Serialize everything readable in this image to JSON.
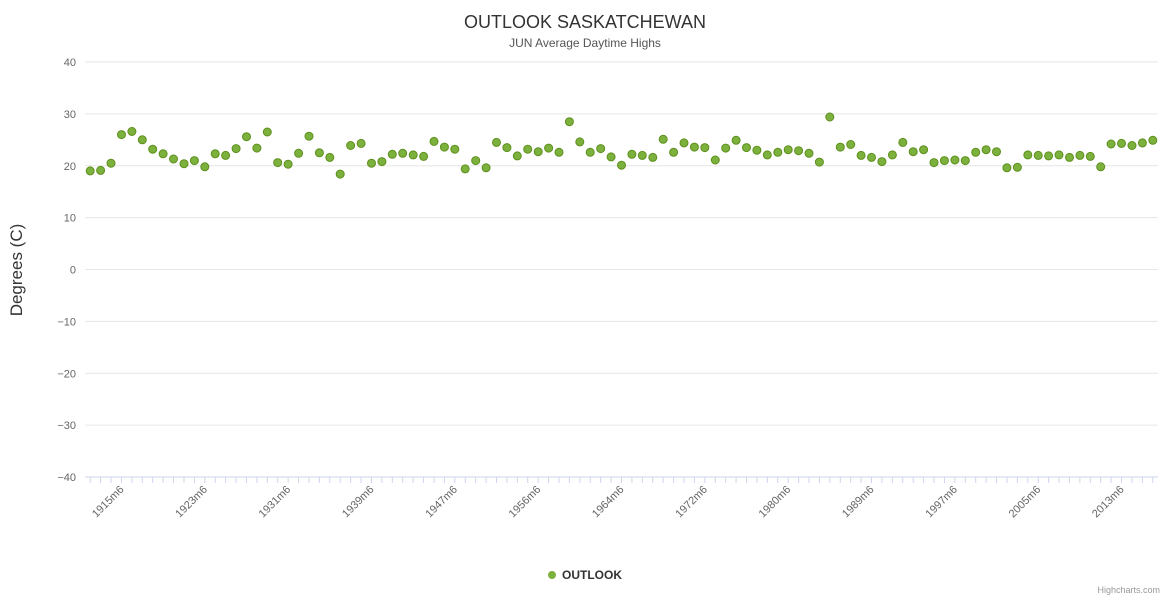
{
  "chart": {
    "credits": "Highcharts.com"
  },
  "chart_data": {
    "type": "scatter",
    "title": "OUTLOOK SASKATCHEWAN",
    "subtitle": "JUN Average Daytime Highs",
    "xlabel": "",
    "ylabel": "Degrees (C)",
    "ylim": [
      -40,
      40
    ],
    "y_tick_interval": 10,
    "y_tick_labels": [
      "40",
      "30",
      "20",
      "10",
      "0",
      "−10",
      "−20",
      "−30",
      "−40"
    ],
    "grid": true,
    "legend_position": "bottom-center",
    "x_tick_start": 3,
    "x_tick_interval": 8,
    "x_tick_labels": [
      "1915m6",
      "1923m6",
      "1931m6",
      "1939m6",
      "1947m6",
      "1956m6",
      "1964m6",
      "1972m6",
      "1980m6",
      "1989m6",
      "1997m6",
      "2005m6",
      "2013m6"
    ],
    "categories": [
      "1912m6",
      "1913m6",
      "1914m6",
      "1915m6",
      "1916m6",
      "1917m6",
      "1918m6",
      "1919m6",
      "1920m6",
      "1921m6",
      "1922m6",
      "1923m6",
      "1924m6",
      "1925m6",
      "1926m6",
      "1927m6",
      "1928m6",
      "1929m6",
      "1930m6",
      "1931m6",
      "1932m6",
      "1933m6",
      "1934m6",
      "1935m6",
      "1936m6",
      "1937m6",
      "1938m6",
      "1939m6",
      "1940m6",
      "1941m6",
      "1942m6",
      "1943m6",
      "1944m6",
      "1945m6",
      "1946m6",
      "1947m6",
      "1948m6",
      "1949m6",
      "1951m6",
      "1952m6",
      "1953m6",
      "1954m6",
      "1955m6",
      "1956m6",
      "1957m6",
      "1958m6",
      "1959m6",
      "1960m6",
      "1961m6",
      "1962m6",
      "1963m6",
      "1964m6",
      "1965m6",
      "1966m6",
      "1967m6",
      "1968m6",
      "1969m6",
      "1970m6",
      "1971m6",
      "1972m6",
      "1973m6",
      "1974m6",
      "1975m6",
      "1976m6",
      "1977m6",
      "1978m6",
      "1979m6",
      "1980m6",
      "1981m6",
      "1982m6",
      "1983m6",
      "1984m6",
      "1986m6",
      "1987m6",
      "1988m6",
      "1989m6",
      "1990m6",
      "1991m6",
      "1992m6",
      "1993m6",
      "1994m6",
      "1995m6",
      "1996m6",
      "1997m6",
      "1998m6",
      "1999m6",
      "2000m6",
      "2001m6",
      "2002m6",
      "2003m6",
      "2004m6",
      "2005m6",
      "2006m6",
      "2007m6",
      "2008m6",
      "2009m6",
      "2010m6",
      "2011m6",
      "2012m6",
      "2013m6",
      "2014m6",
      "2015m6",
      "2016m6"
    ],
    "series": [
      {
        "name": "OUTLOOK",
        "color": "#7cb13d",
        "marker_stroke": "#5d8f1d",
        "marker": "circle",
        "values": [
          19.0,
          19.1,
          20.5,
          26.0,
          26.6,
          25.0,
          23.2,
          22.3,
          21.3,
          20.4,
          21.0,
          19.8,
          22.3,
          22.0,
          23.3,
          25.6,
          23.4,
          26.5,
          20.6,
          20.3,
          22.4,
          25.7,
          22.5,
          21.6,
          18.4,
          23.9,
          24.3,
          20.5,
          20.8,
          22.2,
          22.4,
          22.1,
          21.8,
          24.7,
          23.6,
          23.2,
          19.4,
          21.0,
          19.6,
          24.5,
          23.5,
          21.9,
          23.2,
          22.7,
          23.4,
          22.6,
          28.5,
          24.6,
          22.6,
          23.3,
          21.7,
          20.1,
          22.2,
          22.0,
          21.6,
          25.1,
          22.6,
          24.4,
          23.6,
          23.5,
          21.1,
          23.4,
          24.9,
          23.5,
          23.0,
          22.1,
          22.6,
          23.1,
          22.9,
          22.4,
          20.7,
          29.4,
          23.6,
          24.1,
          22.0,
          21.6,
          20.8,
          22.1,
          24.5,
          22.7,
          23.1,
          20.6,
          21.0,
          21.1,
          21.0,
          22.6,
          23.1,
          22.7,
          19.6,
          19.7,
          22.1,
          22.0,
          21.9,
          22.1,
          21.6,
          22.0,
          21.8,
          19.8,
          24.2,
          24.3,
          23.9,
          24.4,
          24.9
        ]
      }
    ],
    "colors": {
      "grid": "#e6e6e6",
      "axis_line": "#ccd6eb",
      "tick": "#ccd6eb",
      "label": "#666666",
      "background": "#ffffff"
    }
  }
}
